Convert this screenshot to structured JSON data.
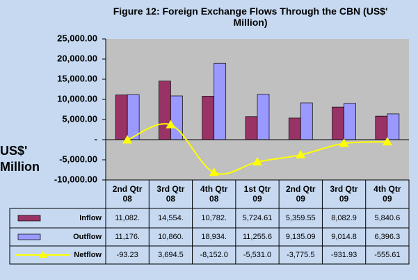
{
  "chart_data": {
    "type": "bar",
    "title": "Figure 12: Foreign Exchange  Flows Through the CBN (US$'\nMillion)",
    "y_label": "US$'\nMillion",
    "categories": [
      "2nd Qtr\n08",
      "3rd Qtr\n08",
      "4th Qtr\n08",
      "1st Qtr\n09",
      "2nd Qtr\n09",
      "3rd Qtr\n09",
      "4th Qtr\n09"
    ],
    "series": [
      {
        "name": "Inflow",
        "type": "bar",
        "color": "#993366",
        "values": [
          11082,
          14554,
          10782,
          5724.61,
          5359.55,
          8082.9,
          5840.6
        ],
        "value_labels": [
          "11,082.",
          "14,554.",
          "10,782.",
          "5,724.61",
          "5,359.55",
          "8,082.9",
          "5,840.6"
        ]
      },
      {
        "name": "Outflow",
        "type": "bar",
        "color": "#9999ff",
        "values": [
          11176,
          10860,
          18934,
          11255.6,
          9135.09,
          9014.8,
          6396.3
        ],
        "value_labels": [
          "11,176.",
          "10,860.",
          "18,934.",
          "11,255.6",
          "9,135.09",
          "9,014.8",
          "6,396.3"
        ]
      },
      {
        "name": "Netflow",
        "type": "line",
        "color": "#ffff00",
        "values": [
          -93.23,
          3694.5,
          -8152.0,
          -5531.0,
          -3775.5,
          -931.93,
          -555.61
        ],
        "value_labels": [
          "-93.23",
          "3,694.5",
          "-8,152.0",
          "-5,531.0",
          "-3,775.5",
          "-931.93",
          "-555.61"
        ]
      }
    ],
    "ylim": [
      -10000,
      25000
    ],
    "yticks": [
      {
        "value": -10000,
        "label": "-10,000.00"
      },
      {
        "value": -5000,
        "label": "-5,000.00"
      },
      {
        "value": 0,
        "label": "-"
      },
      {
        "value": 5000,
        "label": "5,000.00"
      },
      {
        "value": 10000,
        "label": "10,000.00"
      },
      {
        "value": 15000,
        "label": "15,000.00"
      },
      {
        "value": 20000,
        "label": "20,000.00"
      },
      {
        "value": 25000,
        "label": "25,000.00"
      }
    ],
    "grid": false
  }
}
